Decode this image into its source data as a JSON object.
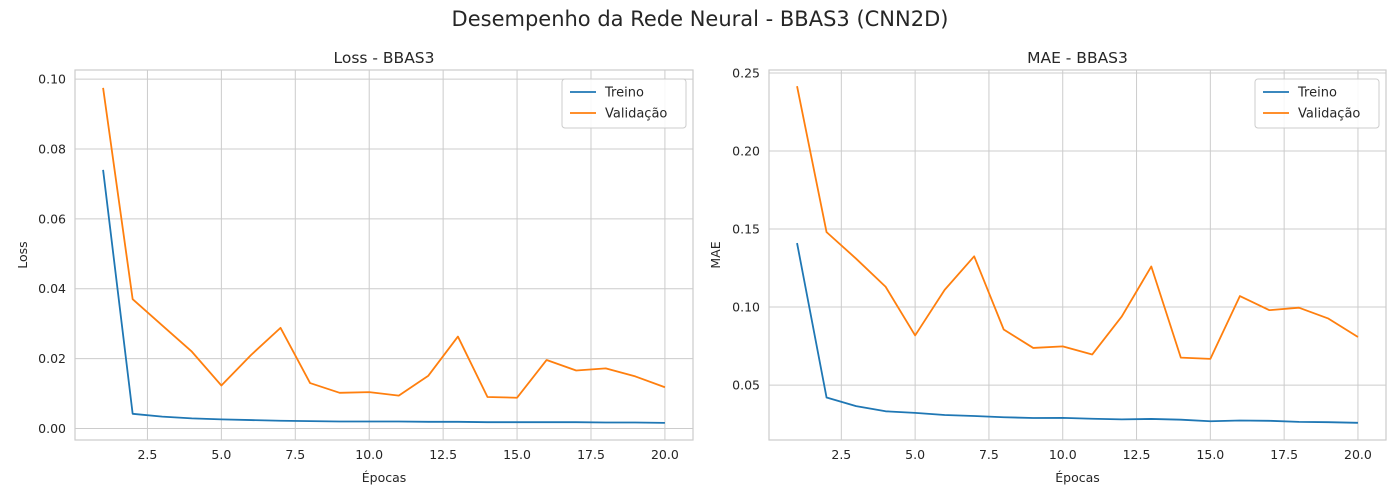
{
  "figure": {
    "suptitle": "Desempenho da Rede Neural - BBAS3 (CNN2D)"
  },
  "colors": {
    "treino": "#1f77b4",
    "validacao": "#ff7f0e",
    "grid": "#cccccc"
  },
  "chart_data": [
    {
      "type": "line",
      "title": "Loss - BBAS3",
      "xlabel": "Épocas",
      "ylabel": "Loss",
      "xlim": [
        0.05,
        20.95
      ],
      "ylim": [
        -0.0033,
        0.1026
      ],
      "xticks": [
        2.5,
        5.0,
        7.5,
        10.0,
        12.5,
        15.0,
        17.5,
        20.0
      ],
      "xtick_labels": [
        "2.5",
        "5.0",
        "7.5",
        "10.0",
        "12.5",
        "15.0",
        "17.5",
        "20.0"
      ],
      "yticks": [
        0.0,
        0.02,
        0.04,
        0.06,
        0.08,
        0.1
      ],
      "ytick_labels": [
        "0.00",
        "0.02",
        "0.04",
        "0.06",
        "0.08",
        "0.10"
      ],
      "grid": true,
      "legend": "top-right",
      "x": [
        1,
        2,
        3,
        4,
        5,
        6,
        7,
        8,
        9,
        10,
        11,
        12,
        13,
        14,
        15,
        16,
        17,
        18,
        19,
        20
      ],
      "series": [
        {
          "name": "Treino",
          "values": [
            0.074,
            0.0042,
            0.0034,
            0.0029,
            0.0026,
            0.0024,
            0.0022,
            0.0021,
            0.002,
            0.002,
            0.002,
            0.0019,
            0.0019,
            0.0018,
            0.0018,
            0.0018,
            0.0018,
            0.0017,
            0.0017,
            0.0016
          ]
        },
        {
          "name": "Validação",
          "values": [
            0.0975,
            0.037,
            0.0295,
            0.022,
            0.0123,
            0.021,
            0.0288,
            0.013,
            0.0102,
            0.0104,
            0.0094,
            0.0151,
            0.0263,
            0.009,
            0.0088,
            0.0196,
            0.0166,
            0.0172,
            0.0149,
            0.0118
          ]
        }
      ]
    },
    {
      "type": "line",
      "title": "MAE - BBAS3",
      "xlabel": "Épocas",
      "ylabel": "MAE",
      "xlim": [
        0.05,
        20.95
      ],
      "ylim": [
        0.0148,
        0.2519
      ],
      "xticks": [
        2.5,
        5.0,
        7.5,
        10.0,
        12.5,
        15.0,
        17.5,
        20.0
      ],
      "xtick_labels": [
        "2.5",
        "5.0",
        "7.5",
        "10.0",
        "12.5",
        "15.0",
        "17.5",
        "20.0"
      ],
      "yticks": [
        0.05,
        0.1,
        0.15,
        0.2,
        0.25
      ],
      "ytick_labels": [
        "0.05",
        "0.10",
        "0.15",
        "0.20",
        "0.25"
      ],
      "grid": true,
      "legend": "top-right",
      "x": [
        1,
        2,
        3,
        4,
        5,
        6,
        7,
        8,
        9,
        10,
        11,
        12,
        13,
        14,
        15,
        16,
        17,
        18,
        19,
        20
      ],
      "series": [
        {
          "name": "Treino",
          "values": [
            0.141,
            0.042,
            0.0365,
            0.0332,
            0.0322,
            0.0308,
            0.0302,
            0.0294,
            0.0289,
            0.029,
            0.0284,
            0.028,
            0.0283,
            0.0278,
            0.0268,
            0.0273,
            0.0271,
            0.0264,
            0.0262,
            0.0258
          ]
        },
        {
          "name": "Validação",
          "values": [
            0.2415,
            0.148,
            0.131,
            0.113,
            0.0818,
            0.111,
            0.1325,
            0.0856,
            0.0738,
            0.0748,
            0.0696,
            0.094,
            0.126,
            0.0676,
            0.0668,
            0.107,
            0.098,
            0.0996,
            0.0926,
            0.0808
          ]
        }
      ]
    }
  ]
}
